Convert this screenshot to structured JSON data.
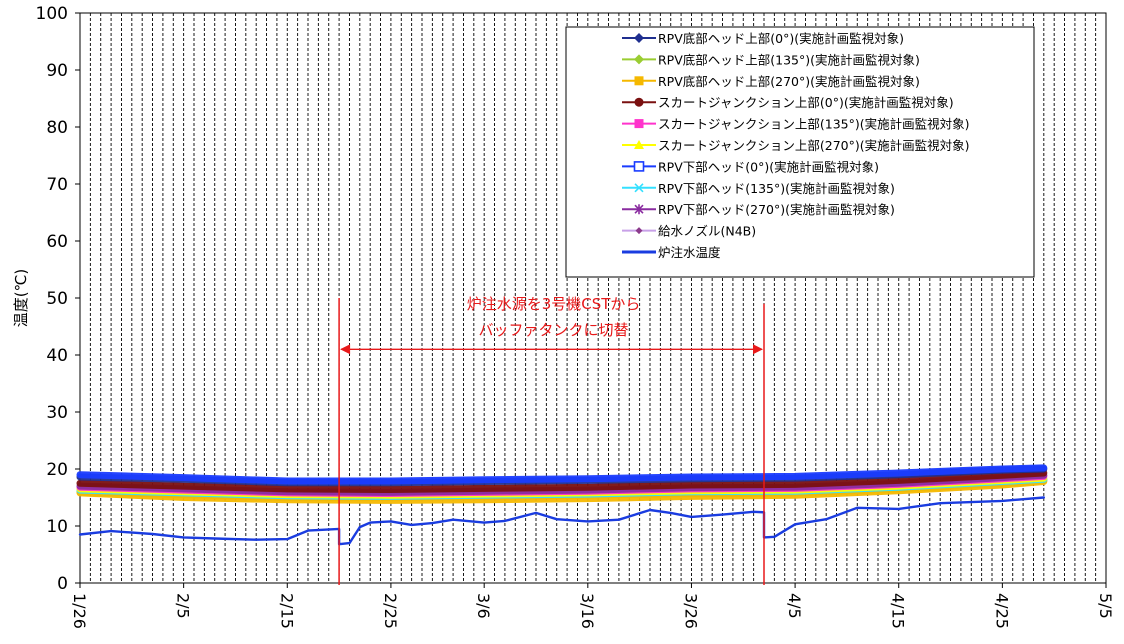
{
  "chart_data": {
    "type": "line",
    "title": "",
    "ylabel": "温度(℃)",
    "xlabel": "",
    "ylim": [
      0,
      100
    ],
    "yticks": [
      0,
      10,
      20,
      30,
      40,
      50,
      60,
      70,
      80,
      90,
      100
    ],
    "xlim": [
      "1/26",
      "5/5"
    ],
    "xticks": [
      "1/26",
      "2/5",
      "2/15",
      "2/25",
      "3/6",
      "3/16",
      "3/26",
      "4/5",
      "4/15",
      "4/25",
      "5/5"
    ],
    "grid": "vertical daily lines",
    "legend_position": "top-right",
    "annotation": {
      "text_lines": [
        "炉注水源を3号機CSTから",
        "バッファタンクに切替"
      ],
      "start": "2/20",
      "end": "4/2",
      "color": "#e8191a"
    },
    "series": [
      {
        "name": "RPV底部ヘッド上部(0°)(実施計画監視対象)",
        "color": "#1f2f8f",
        "marker": "diamond",
        "points": [
          [
            "1/26",
            18.6
          ],
          [
            "2/5",
            18.2
          ],
          [
            "2/15",
            17.6
          ],
          [
            "2/25",
            17.6
          ],
          [
            "3/6",
            17.8
          ],
          [
            "3/16",
            18.0
          ],
          [
            "3/26",
            18.3
          ],
          [
            "4/5",
            18.4
          ],
          [
            "4/15",
            19.0
          ],
          [
            "4/25",
            19.8
          ],
          [
            "4/29",
            20.0
          ]
        ]
      },
      {
        "name": "RPV底部ヘッド上部(135°)(実施計画監視対象)",
        "color": "#9acd32",
        "marker": "diamond",
        "points": [
          [
            "1/26",
            16.0
          ],
          [
            "2/5",
            15.5
          ],
          [
            "2/15",
            15.0
          ],
          [
            "2/25",
            15.0
          ],
          [
            "3/6",
            15.2
          ],
          [
            "3/16",
            15.4
          ],
          [
            "3/26",
            15.7
          ],
          [
            "4/5",
            15.8
          ],
          [
            "4/15",
            16.5
          ],
          [
            "4/25",
            17.5
          ],
          [
            "4/29",
            18.0
          ]
        ]
      },
      {
        "name": "RPV底部ヘッド上部(270°)(実施計画監視対象)",
        "color": "#f5b800",
        "marker": "square",
        "points": [
          [
            "1/26",
            15.8
          ],
          [
            "2/5",
            15.0
          ],
          [
            "2/15",
            14.6
          ],
          [
            "2/25",
            14.5
          ],
          [
            "3/6",
            14.6
          ],
          [
            "3/16",
            14.8
          ],
          [
            "3/26",
            15.2
          ],
          [
            "4/5",
            15.4
          ],
          [
            "4/15",
            16.2
          ],
          [
            "4/25",
            17.2
          ],
          [
            "4/29",
            17.8
          ]
        ]
      },
      {
        "name": "スカートジャンクション上部(0°)(実施計画監視対象)",
        "color": "#7a1010",
        "marker": "circle",
        "points": [
          [
            "1/26",
            17.5
          ],
          [
            "2/5",
            17.0
          ],
          [
            "2/15",
            16.5
          ],
          [
            "2/25",
            16.4
          ],
          [
            "3/6",
            16.6
          ],
          [
            "3/16",
            16.8
          ],
          [
            "3/26",
            17.2
          ],
          [
            "4/5",
            17.3
          ],
          [
            "4/15",
            18.0
          ],
          [
            "4/25",
            18.9
          ],
          [
            "4/29",
            19.3
          ]
        ]
      },
      {
        "name": "スカートジャンクション上部(135°)(実施計画監視対象)",
        "color": "#ff33cc",
        "marker": "square",
        "points": [
          [
            "1/26",
            16.8
          ],
          [
            "2/5",
            16.3
          ],
          [
            "2/15",
            15.8
          ],
          [
            "2/25",
            15.7
          ],
          [
            "3/6",
            15.9
          ],
          [
            "3/16",
            16.1
          ],
          [
            "3/26",
            16.5
          ],
          [
            "4/5",
            16.6
          ],
          [
            "4/15",
            17.3
          ],
          [
            "4/25",
            18.3
          ],
          [
            "4/29",
            18.7
          ]
        ]
      },
      {
        "name": "スカートジャンクション上部(270°)(実施計画監視対象)",
        "color": "#ffff00",
        "marker": "triangle",
        "points": [
          [
            "1/26",
            16.5
          ],
          [
            "2/5",
            16.0
          ],
          [
            "2/15",
            15.5
          ],
          [
            "2/25",
            15.4
          ],
          [
            "3/6",
            15.6
          ],
          [
            "3/16",
            15.8
          ],
          [
            "3/26",
            16.2
          ],
          [
            "4/5",
            16.3
          ],
          [
            "4/15",
            17.0
          ],
          [
            "4/25",
            18.0
          ],
          [
            "4/29",
            18.4
          ]
        ]
      },
      {
        "name": "RPV下部ヘッド(0°)(実施計画監視対象)",
        "color": "#1a3cff",
        "marker": "square-open",
        "points": [
          [
            "1/26",
            19.0
          ],
          [
            "2/5",
            18.5
          ],
          [
            "2/15",
            17.9
          ],
          [
            "2/25",
            17.9
          ],
          [
            "3/6",
            18.1
          ],
          [
            "3/16",
            18.3
          ],
          [
            "3/26",
            18.6
          ],
          [
            "4/5",
            18.7
          ],
          [
            "4/15",
            19.3
          ],
          [
            "4/25",
            20.0
          ],
          [
            "4/29",
            20.2
          ]
        ]
      },
      {
        "name": "RPV下部ヘッド(135°)(実施計画監視対象)",
        "color": "#33e0ff",
        "marker": "x",
        "points": [
          [
            "1/26",
            16.3
          ],
          [
            "2/5",
            15.8
          ],
          [
            "2/15",
            15.3
          ],
          [
            "2/25",
            15.2
          ],
          [
            "3/6",
            15.4
          ],
          [
            "3/16",
            15.6
          ],
          [
            "3/26",
            16.0
          ],
          [
            "4/5",
            16.1
          ],
          [
            "4/15",
            16.8
          ],
          [
            "4/25",
            17.8
          ],
          [
            "4/29",
            18.2
          ]
        ]
      },
      {
        "name": "RPV下部ヘッド(270°)(実施計画監視対象)",
        "color": "#8a2ca0",
        "marker": "star",
        "points": [
          [
            "1/26",
            17.0
          ],
          [
            "2/5",
            16.5
          ],
          [
            "2/15",
            16.0
          ],
          [
            "2/25",
            15.9
          ],
          [
            "3/6",
            16.1
          ],
          [
            "3/16",
            16.3
          ],
          [
            "3/26",
            16.7
          ],
          [
            "4/5",
            16.8
          ],
          [
            "4/15",
            17.5
          ],
          [
            "4/25",
            18.5
          ],
          [
            "4/29",
            18.9
          ]
        ]
      },
      {
        "name": "給水ノズル(N4B)",
        "color": "#c8a0e8",
        "marker": "diamond-small",
        "points": [
          [
            "1/26",
            16.2
          ],
          [
            "2/5",
            15.7
          ],
          [
            "2/15",
            15.2
          ],
          [
            "2/25",
            15.1
          ],
          [
            "3/6",
            15.3
          ],
          [
            "3/16",
            15.5
          ],
          [
            "3/26",
            15.9
          ],
          [
            "4/5",
            16.0
          ],
          [
            "4/15",
            16.7
          ],
          [
            "4/25",
            17.7
          ],
          [
            "4/29",
            18.1
          ]
        ]
      },
      {
        "name": "炉注水温度",
        "color": "#1a3ce0",
        "marker": "none",
        "points": [
          [
            "1/26",
            8.5
          ],
          [
            "1/29",
            9.1
          ],
          [
            "2/2",
            8.6
          ],
          [
            "2/5",
            8.0
          ],
          [
            "2/8",
            7.8
          ],
          [
            "2/12",
            7.6
          ],
          [
            "2/15",
            7.7
          ],
          [
            "2/17",
            9.2
          ],
          [
            "2/20",
            9.5
          ],
          [
            "2/20",
            6.8
          ],
          [
            "2/21",
            7.0
          ],
          [
            "2/22",
            9.8
          ],
          [
            "2/23",
            10.6
          ],
          [
            "2/25",
            10.8
          ],
          [
            "2/27",
            10.2
          ],
          [
            "3/1",
            10.5
          ],
          [
            "3/3",
            11.1
          ],
          [
            "3/6",
            10.6
          ],
          [
            "3/8",
            10.9
          ],
          [
            "3/11",
            12.3
          ],
          [
            "3/13",
            11.2
          ],
          [
            "3/16",
            10.8
          ],
          [
            "3/19",
            11.1
          ],
          [
            "3/22",
            12.8
          ],
          [
            "3/24",
            12.3
          ],
          [
            "3/26",
            11.6
          ],
          [
            "3/29",
            12.0
          ],
          [
            "4/1",
            12.5
          ],
          [
            "4/2",
            12.4
          ],
          [
            "4/2",
            8.0
          ],
          [
            "4/3",
            8.1
          ],
          [
            "4/5",
            10.3
          ],
          [
            "4/8",
            11.2
          ],
          [
            "4/11",
            13.2
          ],
          [
            "4/15",
            13.0
          ],
          [
            "4/19",
            14.0
          ],
          [
            "4/22",
            14.2
          ],
          [
            "4/25",
            14.4
          ],
          [
            "4/29",
            15.0
          ]
        ]
      }
    ]
  }
}
